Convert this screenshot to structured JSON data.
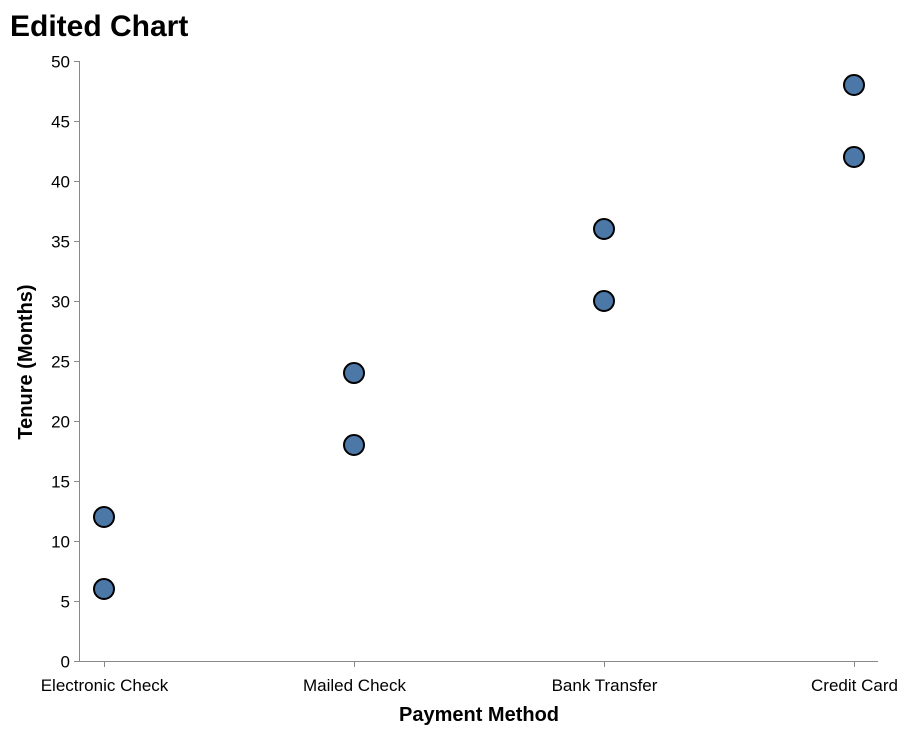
{
  "chart_data": {
    "type": "scatter",
    "title": "Edited Chart",
    "xlabel": "Payment Method",
    "ylabel": "Tenure (Months)",
    "categories": [
      "Electronic Check",
      "Mailed Check",
      "Bank Transfer",
      "Credit Card"
    ],
    "points": [
      {
        "x": "Electronic Check",
        "y": 6
      },
      {
        "x": "Electronic Check",
        "y": 12
      },
      {
        "x": "Mailed Check",
        "y": 18
      },
      {
        "x": "Mailed Check",
        "y": 24
      },
      {
        "x": "Bank Transfer",
        "y": 30
      },
      {
        "x": "Bank Transfer",
        "y": 36
      },
      {
        "x": "Credit Card",
        "y": 42
      },
      {
        "x": "Credit Card",
        "y": 48
      }
    ],
    "ylim": [
      0,
      50
    ],
    "yticks": [
      0,
      5,
      10,
      15,
      20,
      25,
      30,
      35,
      40,
      45,
      50
    ],
    "grid": false,
    "legend": "none",
    "point_color": "#4c78a8",
    "point_stroke": "#000000"
  }
}
